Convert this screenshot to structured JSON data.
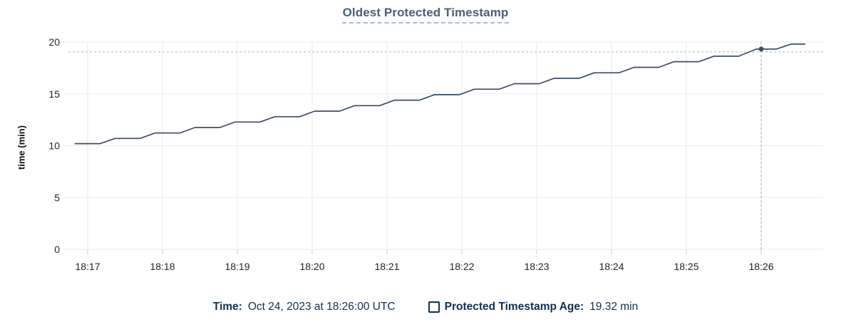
{
  "colors": {
    "title": "#4c5e79",
    "title-underline": "#a7bcd4",
    "legend-text": "#132f4f",
    "line": "#3d4d67",
    "grid": "#efefef",
    "tick": "#d8d8d8",
    "axis-text": "#242424",
    "crosshair": "#a9bfd3"
  },
  "chart_data": {
    "type": "line",
    "title": "Oldest Protected Timestamp",
    "xlabel": "",
    "ylabel": "time (min)",
    "ylim": [
      0,
      20
    ],
    "y_ticks": [
      0,
      5,
      10,
      15,
      20
    ],
    "x_ticks": [
      {
        "label": "18:17",
        "t": 0
      },
      {
        "label": "18:18",
        "t": 60
      },
      {
        "label": "18:19",
        "t": 120
      },
      {
        "label": "18:20",
        "t": 180
      },
      {
        "label": "18:21",
        "t": 240
      },
      {
        "label": "18:22",
        "t": 300
      },
      {
        "label": "18:23",
        "t": 360
      },
      {
        "label": "18:24",
        "t": 420
      },
      {
        "label": "18:25",
        "t": 480
      },
      {
        "label": "18:26",
        "t": 540
      }
    ],
    "x_range_sec": [
      -15,
      590
    ],
    "grid": true,
    "legend_position": "bottom",
    "series": [
      {
        "name": "Protected Timestamp Age",
        "unit": "min",
        "color": "#3d4d67",
        "points": [
          [
            -10,
            10.2
          ],
          [
            10,
            10.2
          ],
          [
            22,
            10.7
          ],
          [
            42,
            10.7
          ],
          [
            54,
            11.22
          ],
          [
            74,
            11.22
          ],
          [
            86,
            11.75
          ],
          [
            106,
            11.75
          ],
          [
            118,
            12.28
          ],
          [
            138,
            12.28
          ],
          [
            150,
            12.8
          ],
          [
            170,
            12.8
          ],
          [
            182,
            13.33
          ],
          [
            202,
            13.33
          ],
          [
            214,
            13.86
          ],
          [
            234,
            13.86
          ],
          [
            246,
            14.39
          ],
          [
            266,
            14.39
          ],
          [
            278,
            14.92
          ],
          [
            298,
            14.92
          ],
          [
            310,
            15.45
          ],
          [
            330,
            15.45
          ],
          [
            342,
            15.98
          ],
          [
            362,
            15.98
          ],
          [
            374,
            16.5
          ],
          [
            394,
            16.5
          ],
          [
            406,
            17.03
          ],
          [
            426,
            17.03
          ],
          [
            438,
            17.56
          ],
          [
            458,
            17.56
          ],
          [
            470,
            18.1
          ],
          [
            490,
            18.1
          ],
          [
            502,
            18.63
          ],
          [
            522,
            18.63
          ],
          [
            536,
            19.32
          ],
          [
            552,
            19.32
          ],
          [
            564,
            19.8
          ],
          [
            575,
            19.8
          ]
        ]
      }
    ],
    "hover_marker": {
      "t_sec": 540,
      "time": "18:26:00",
      "value_min": 19.32,
      "crosshair_value_min": 19.05
    }
  },
  "tooltip": {
    "time_label": "Time:",
    "time_value": "Oct 24, 2023 at 18:26:00 UTC",
    "series_label": "Protected Timestamp Age:",
    "series_value": "19.32 min"
  }
}
